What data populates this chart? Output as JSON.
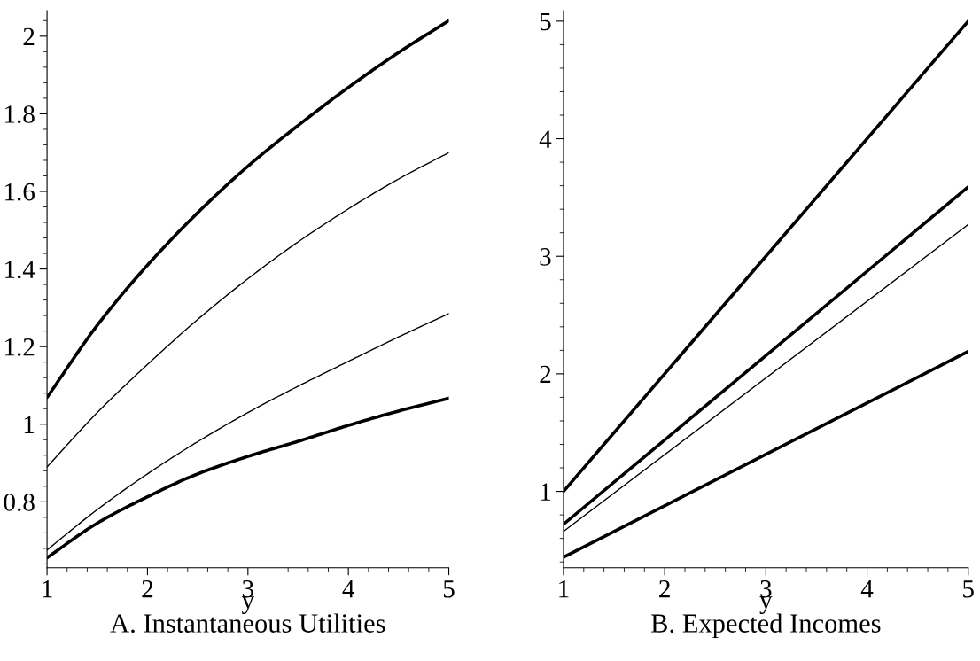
{
  "chart_data": [
    {
      "type": "line",
      "title": "A. Instantaneous Utilities",
      "xlabel": "y",
      "x": [
        1,
        1.5,
        2,
        2.5,
        3,
        3.5,
        4,
        4.5,
        5
      ],
      "series": [
        {
          "color": "#000000",
          "values": [
            1.069,
            1.255,
            1.41,
            1.545,
            1.665,
            1.77,
            1.868,
            1.958,
            2.04
          ]
        },
        {
          "color": "#000000",
          "values": [
            0.89,
            1.03,
            1.154,
            1.27,
            1.375,
            1.47,
            1.555,
            1.632,
            1.7
          ]
        },
        {
          "color": "#000000",
          "values": [
            0.676,
            0.78,
            0.872,
            0.955,
            1.03,
            1.098,
            1.162,
            1.225,
            1.285
          ]
        },
        {
          "color": "#000000",
          "values": [
            0.656,
            0.745,
            0.813,
            0.872,
            0.917,
            0.956,
            0.997,
            1.034,
            1.067
          ]
        }
      ],
      "xlim": [
        1,
        5
      ],
      "xticks": [
        1,
        2,
        3,
        4,
        5
      ],
      "ylim": [
        0.63,
        2.066
      ],
      "yticks": [
        0.8,
        1,
        1.2,
        1.4,
        1.6,
        1.8,
        2
      ],
      "grid": false,
      "legend": false
    },
    {
      "type": "line",
      "title": "B. Expected Incomes",
      "xlabel": "y",
      "x": [
        1,
        5
      ],
      "series": [
        {
          "color": "#000000",
          "values": [
            1.0,
            5.0
          ]
        },
        {
          "color": "#000000",
          "values": [
            0.72,
            3.59
          ]
        },
        {
          "color": "#000000",
          "values": [
            0.66,
            3.27
          ]
        },
        {
          "color": "#000000",
          "values": [
            0.44,
            2.19
          ]
        }
      ],
      "xlim": [
        1,
        5
      ],
      "xticks": [
        1,
        2,
        3,
        4,
        5
      ],
      "ylim": [
        0.35,
        5.09
      ],
      "yticks": [
        1,
        2,
        3,
        4,
        5
      ],
      "grid": false,
      "legend": false
    }
  ]
}
